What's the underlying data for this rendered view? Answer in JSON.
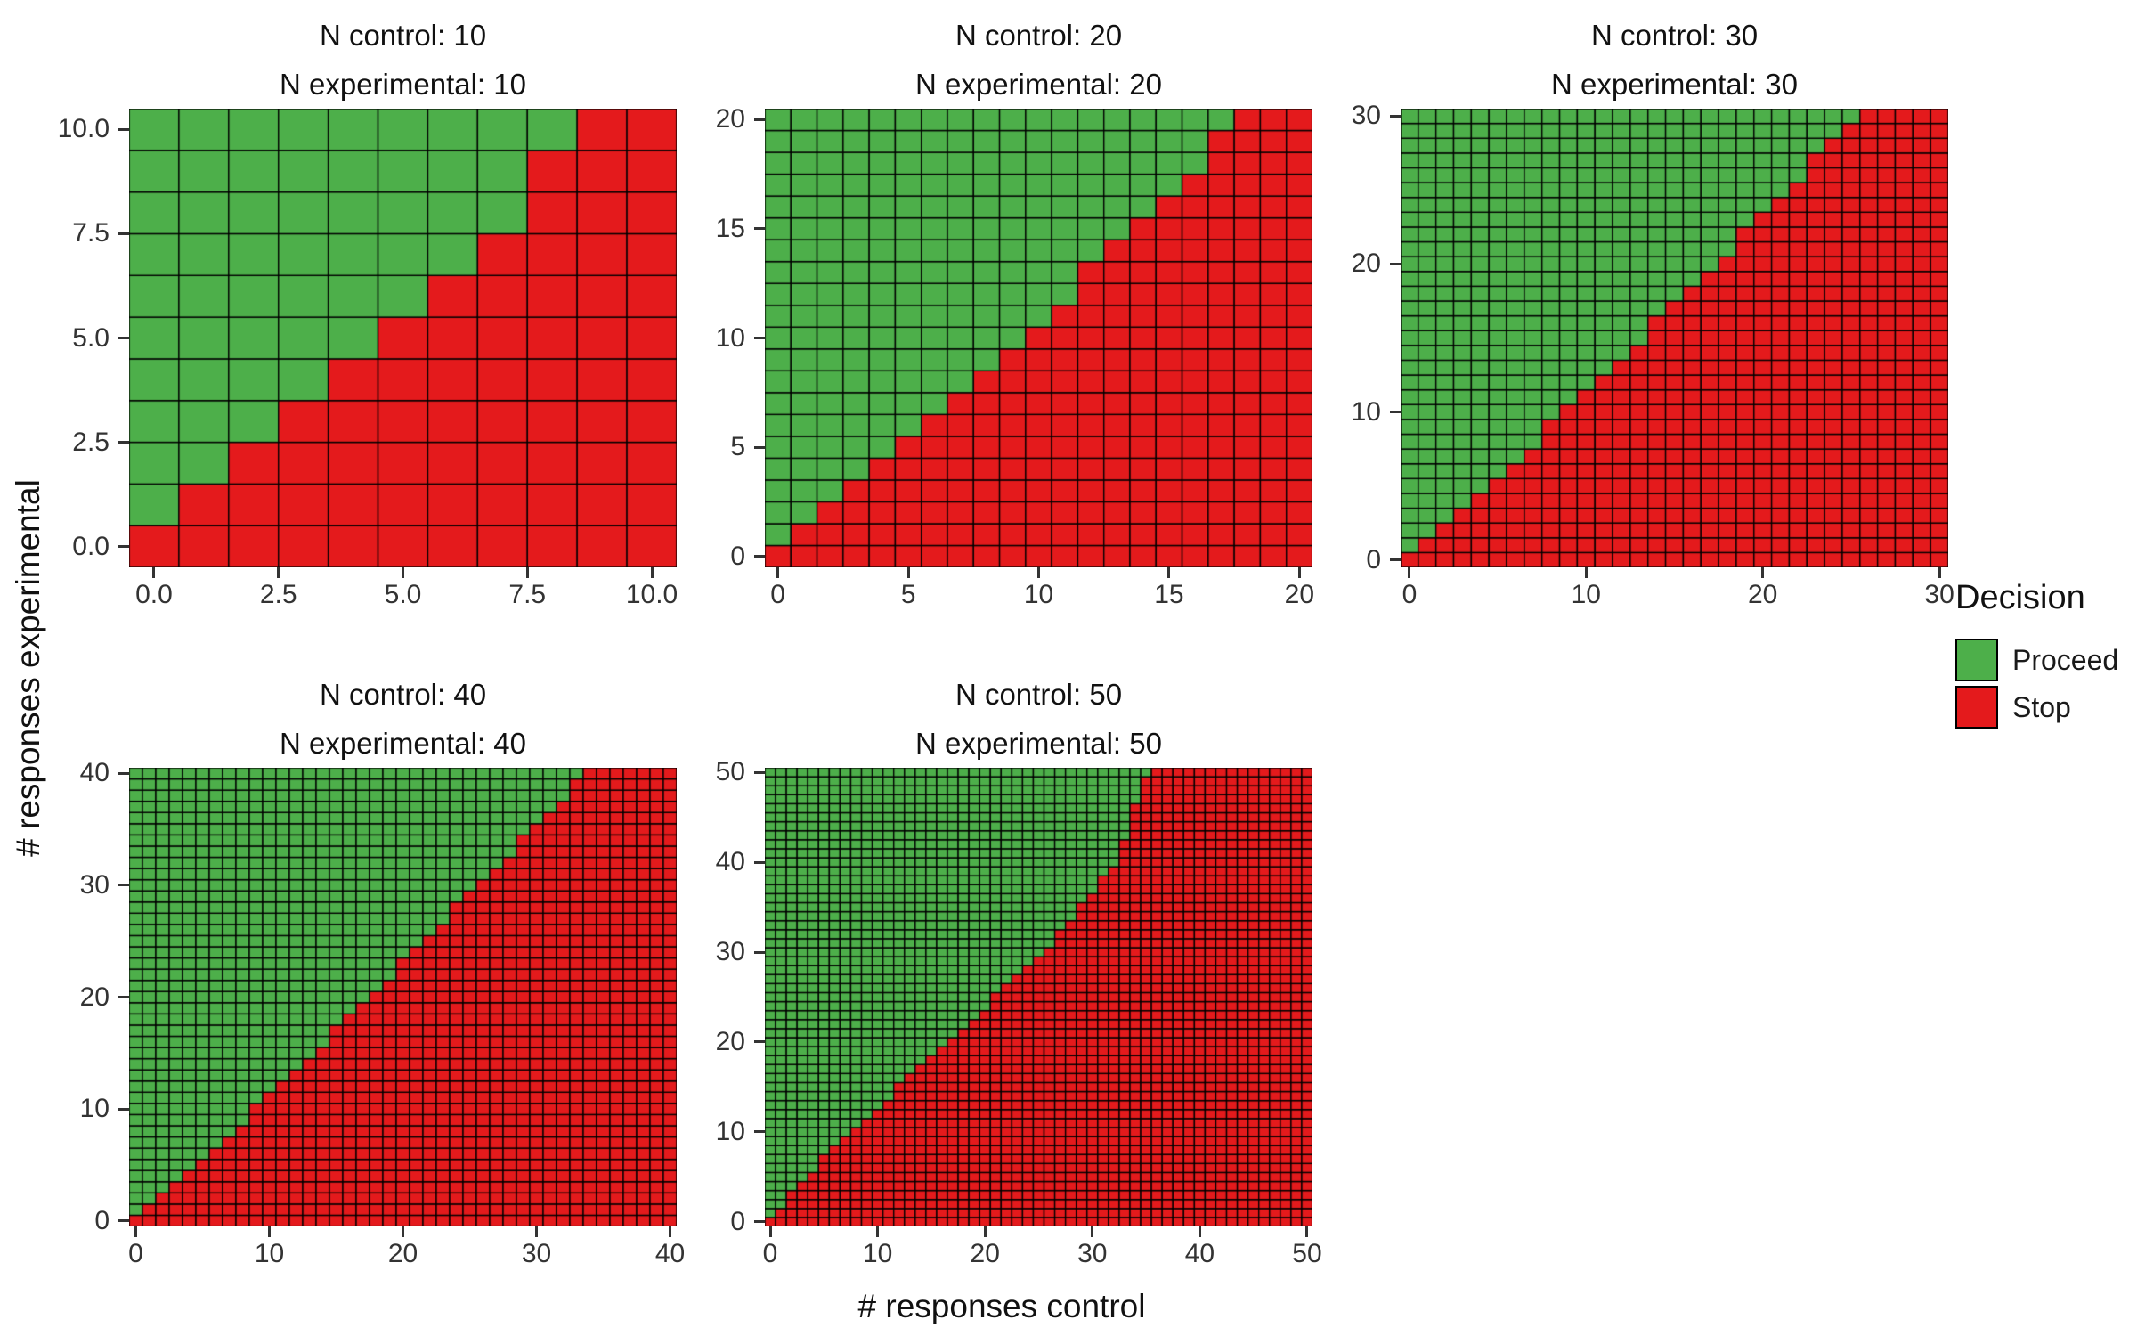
{
  "figure": {
    "background": "#ffffff",
    "x_axis_label": "# responses control",
    "y_axis_label": "# responses experimental"
  },
  "legend": {
    "title": "Decision",
    "entries": [
      {
        "label": "Proceed",
        "color": "#4daf4a"
      },
      {
        "label": "Stop",
        "color": "#e41a1c"
      }
    ]
  },
  "chart_data": {
    "type": "heatmap",
    "title": "",
    "xlabel": "# responses control",
    "ylabel": "# responses experimental",
    "legend_title": "Decision",
    "legend_entries": [
      "Proceed",
      "Stop"
    ],
    "colors": {
      "Proceed": "#4daf4a",
      "Stop": "#e41a1c",
      "cell_border": "#000000"
    },
    "cell_rule": "Each facet is an (n+1) x (n+1) grid of unit tiles over x = 0..n responses control and y = 0..n responses experimental. A tile is 'Proceed' (green) when y >= proceed_min_y[x], otherwise 'Stop' (red). A proceed_min_y value of n+1 means the entire column is Stop.",
    "panels": [
      {
        "n": 10,
        "facet_label_control": "N control: 10",
        "facet_label_experimental": "N experimental: 10",
        "axis_range": [
          -0.5,
          10.5
        ],
        "x_ticks": [
          "0.0",
          "2.5",
          "5.0",
          "7.5",
          "10.0"
        ],
        "x_tick_values": [
          0,
          2.5,
          5,
          7.5,
          10
        ],
        "y_ticks": [
          "0.0",
          "2.5",
          "5.0",
          "7.5",
          "10.0"
        ],
        "y_tick_values": [
          0,
          2.5,
          5,
          7.5,
          10
        ],
        "proceed_min_y": [
          1,
          2,
          3,
          4,
          5,
          6,
          7,
          8,
          10,
          11,
          11
        ]
      },
      {
        "n": 20,
        "facet_label_control": "N control: 20",
        "facet_label_experimental": "N experimental: 20",
        "axis_range": [
          -0.5,
          20.5
        ],
        "x_ticks": [
          "0",
          "5",
          "10",
          "15",
          "20"
        ],
        "x_tick_values": [
          0,
          5,
          10,
          15,
          20
        ],
        "y_ticks": [
          "0",
          "5",
          "10",
          "15",
          "20"
        ],
        "y_tick_values": [
          0,
          5,
          10,
          15,
          20
        ],
        "proceed_min_y": [
          1,
          2,
          3,
          4,
          5,
          6,
          7,
          8,
          9,
          10,
          11,
          12,
          14,
          15,
          16,
          17,
          18,
          20,
          21,
          21,
          21
        ]
      },
      {
        "n": 30,
        "facet_label_control": "N control: 30",
        "facet_label_experimental": "N experimental: 30",
        "axis_range": [
          -0.5,
          30.5
        ],
        "x_ticks": [
          "0",
          "10",
          "20",
          "30"
        ],
        "x_tick_values": [
          0,
          10,
          20,
          30
        ],
        "y_ticks": [
          "0",
          "10",
          "20",
          "30"
        ],
        "y_tick_values": [
          0,
          10,
          20,
          30
        ],
        "proceed_min_y": [
          1,
          2,
          3,
          4,
          5,
          6,
          7,
          8,
          10,
          11,
          12,
          13,
          14,
          15,
          17,
          18,
          19,
          20,
          21,
          23,
          24,
          25,
          26,
          28,
          29,
          30,
          31,
          31,
          31,
          31,
          31
        ]
      },
      {
        "n": 40,
        "facet_label_control": "N control: 40",
        "facet_label_experimental": "N experimental: 40",
        "axis_range": [
          -0.5,
          40.5
        ],
        "x_ticks": [
          "0",
          "10",
          "20",
          "30",
          "40"
        ],
        "x_tick_values": [
          0,
          10,
          20,
          30,
          40
        ],
        "y_ticks": [
          "0",
          "10",
          "20",
          "30",
          "40"
        ],
        "y_tick_values": [
          0,
          10,
          20,
          30,
          40
        ],
        "proceed_min_y": [
          1,
          2,
          3,
          4,
          5,
          6,
          7,
          8,
          9,
          11,
          12,
          13,
          14,
          15,
          16,
          18,
          19,
          20,
          21,
          22,
          24,
          25,
          26,
          27,
          29,
          30,
          31,
          32,
          33,
          35,
          36,
          37,
          38,
          40,
          41,
          41,
          41,
          41,
          41,
          41,
          41
        ]
      },
      {
        "n": 50,
        "facet_label_control": "N control: 50",
        "facet_label_experimental": "N experimental: 50",
        "axis_range": [
          -0.5,
          50.5
        ],
        "x_ticks": [
          "0",
          "10",
          "20",
          "30",
          "40",
          "50"
        ],
        "x_tick_values": [
          0,
          10,
          20,
          30,
          40,
          50
        ],
        "y_ticks": [
          "0",
          "10",
          "20",
          "30",
          "40",
          "50"
        ],
        "y_tick_values": [
          0,
          10,
          20,
          30,
          40,
          50
        ],
        "proceed_min_y": [
          1,
          2,
          4,
          5,
          6,
          8,
          9,
          10,
          11,
          12,
          13,
          14,
          16,
          17,
          18,
          19,
          20,
          21,
          22,
          23,
          24,
          26,
          27,
          28,
          29,
          30,
          31,
          33,
          34,
          36,
          37,
          39,
          40,
          43,
          47,
          50,
          51,
          51,
          51,
          51,
          51,
          51,
          51,
          51,
          51,
          51,
          51,
          51,
          51,
          51,
          51
        ]
      }
    ]
  }
}
